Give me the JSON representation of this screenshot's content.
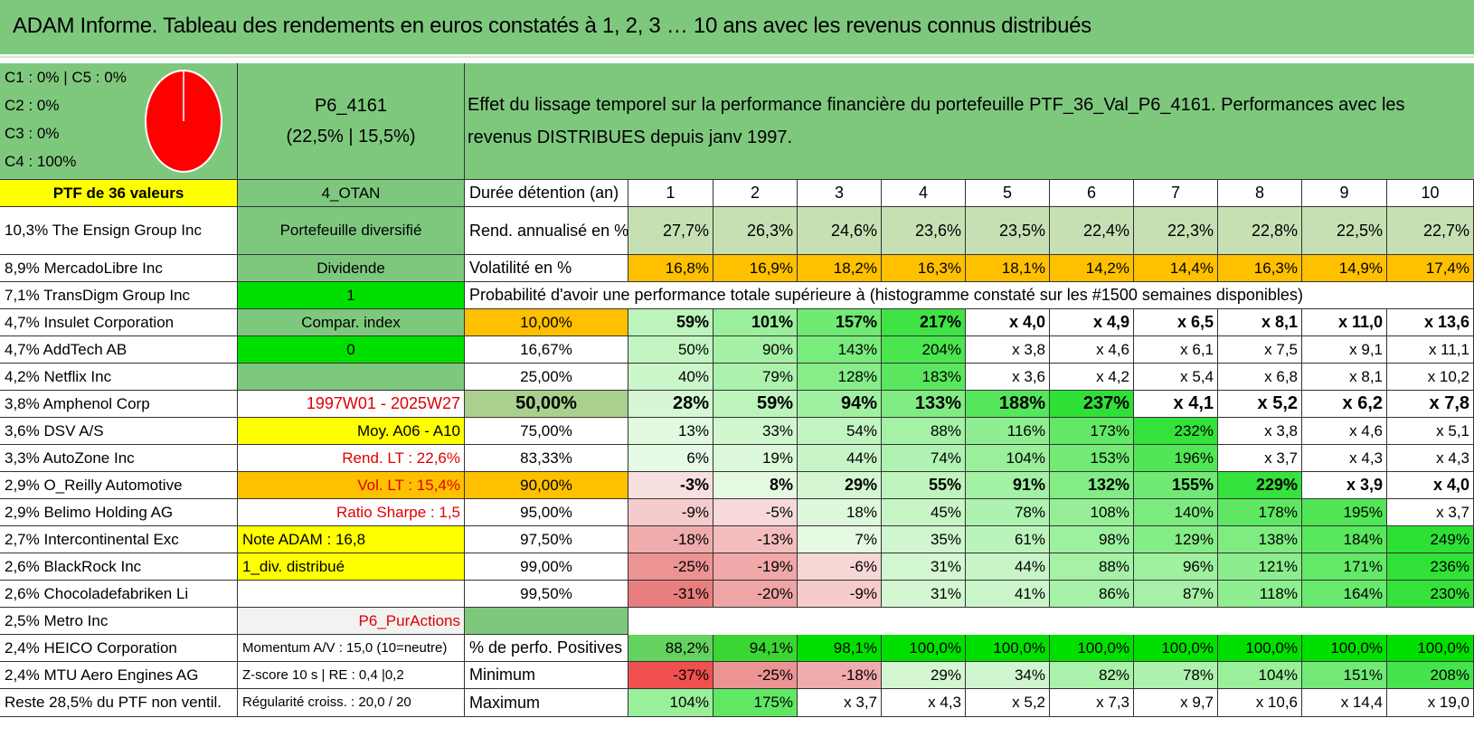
{
  "title": "ADAM Informe. Tableau des rendements en euros constatés à 1, 2, 3 … 10 ans avec les revenus connus distribués",
  "legend": {
    "lines": [
      "C1 : 0% | C5 : 0%",
      "C2 : 0%",
      "C3 : 0%",
      "C4 : 100%"
    ],
    "pie_color": "#ff0000"
  },
  "portfolio": {
    "id": "P6_4161",
    "ratio": "(22,5% | 15,5%)"
  },
  "description": "Effet du lissage temporel sur la performance financière du portefeuille PTF_36_Val_P6_4161. Performances avec les revenus DISTRIBUES depuis janv 1997.",
  "holdings": [
    "PTF de 36 valeurs",
    "10,3% The Ensign Group Inc",
    "8,9% MercadoLibre Inc",
    "7,1% TransDigm Group Inc",
    "4,7% Insulet Corporation",
    "4,7% AddTech AB",
    "4,2% Netflix Inc",
    "3,8% Amphenol Corp",
    "3,6% DSV A/S",
    "3,3% AutoZone Inc",
    "2,9% O_Reilly Automotive",
    "2,9% Belimo Holding AG",
    "2,7% Intercontinental Exc",
    "2,6% BlackRock Inc",
    "2,6% Chocoladefabriken Li",
    "2,5% Metro Inc",
    "2,4% HEICO Corporation",
    "2,4% MTU Aero Engines AG",
    "Reste 28,5% du PTF non ventil."
  ],
  "info": [
    "4_OTAN",
    "Portefeuille diversifié",
    "Dividende",
    "1",
    "Compar. index",
    "0",
    "",
    "1997W01 - 2025W27",
    "Moy. A06 - A10",
    "Rend. LT : 22,6%",
    "Vol. LT : 15,4%",
    "Ratio Sharpe : 1,5",
    "Note ADAM : 16,8",
    "1_div. distribué",
    "",
    "P6_PurActions",
    "Momentum A/V : 15,0 (10=neutre)",
    "Z-score 10 s | RE : 0,4 |0,2",
    "Régularité croiss. : 20,0 / 20"
  ],
  "duration_label": "Durée détention (an)",
  "years": [
    "1",
    "2",
    "3",
    "4",
    "5",
    "6",
    "7",
    "8",
    "9",
    "10"
  ],
  "rend_label": "Rend. annualisé en %",
  "rend": [
    "27,7%",
    "26,3%",
    "24,6%",
    "23,6%",
    "23,5%",
    "22,4%",
    "22,3%",
    "22,8%",
    "22,5%",
    "22,7%"
  ],
  "vol_label": "Volatilité en %",
  "vol": [
    "16,8%",
    "16,9%",
    "18,2%",
    "16,3%",
    "18,1%",
    "14,2%",
    "14,4%",
    "16,3%",
    "14,9%",
    "17,4%"
  ],
  "prob_title": "Probabilité d'avoir une performance totale supérieure à (histogramme constaté sur les #1500 semaines disponibles)",
  "prob_rows": [
    {
      "p": "10,00%",
      "v": [
        "59%",
        "101%",
        "157%",
        "217%",
        "x 4,0",
        "x 4,9",
        "x 6,5",
        "x 8,1",
        "x 11,0",
        "x 13,6"
      ]
    },
    {
      "p": "16,67%",
      "v": [
        "50%",
        "90%",
        "143%",
        "204%",
        "x 3,8",
        "x 4,6",
        "x 6,1",
        "x 7,5",
        "x 9,1",
        "x 11,1"
      ]
    },
    {
      "p": "25,00%",
      "v": [
        "40%",
        "79%",
        "128%",
        "183%",
        "x 3,6",
        "x 4,2",
        "x 5,4",
        "x 6,8",
        "x 8,1",
        "x 10,2"
      ]
    },
    {
      "p": "50,00%",
      "v": [
        "28%",
        "59%",
        "94%",
        "133%",
        "188%",
        "237%",
        "x 4,1",
        "x 5,2",
        "x 6,2",
        "x 7,8"
      ]
    },
    {
      "p": "75,00%",
      "v": [
        "13%",
        "33%",
        "54%",
        "88%",
        "116%",
        "173%",
        "232%",
        "x 3,8",
        "x 4,6",
        "x 5,1"
      ]
    },
    {
      "p": "83,33%",
      "v": [
        "6%",
        "19%",
        "44%",
        "74%",
        "104%",
        "153%",
        "196%",
        "x 3,7",
        "x 4,3",
        "x 4,3"
      ]
    },
    {
      "p": "90,00%",
      "v": [
        "-3%",
        "8%",
        "29%",
        "55%",
        "91%",
        "132%",
        "155%",
        "229%",
        "x 3,9",
        "x 4,0"
      ]
    },
    {
      "p": "95,00%",
      "v": [
        "-9%",
        "-5%",
        "18%",
        "45%",
        "78%",
        "108%",
        "140%",
        "178%",
        "195%",
        "x 3,7"
      ]
    },
    {
      "p": "97,50%",
      "v": [
        "-18%",
        "-13%",
        "7%",
        "35%",
        "61%",
        "98%",
        "129%",
        "138%",
        "184%",
        "249%"
      ]
    },
    {
      "p": "99,00%",
      "v": [
        "-25%",
        "-19%",
        "-6%",
        "31%",
        "44%",
        "88%",
        "96%",
        "121%",
        "171%",
        "236%"
      ]
    },
    {
      "p": "99,50%",
      "v": [
        "-31%",
        "-20%",
        "-9%",
        "31%",
        "41%",
        "86%",
        "87%",
        "118%",
        "164%",
        "230%"
      ]
    }
  ],
  "pos_label": "% de perfo. Positives",
  "pos": [
    "88,2%",
    "94,1%",
    "98,1%",
    "100,0%",
    "100,0%",
    "100,0%",
    "100,0%",
    "100,0%",
    "100,0%",
    "100,0%"
  ],
  "min_label": "Minimum",
  "min": [
    "-37%",
    "-25%",
    "-18%",
    "29%",
    "34%",
    "82%",
    "78%",
    "104%",
    "151%",
    "208%"
  ],
  "max_label": "Maximum",
  "max": [
    "104%",
    "175%",
    "x 3,7",
    "x 4,3",
    "x 5,2",
    "x 7,3",
    "x 9,7",
    "x 10,6",
    "x 14,4",
    "x 19,0"
  ],
  "colors": {
    "title_green": "#7ec87e",
    "yellow": "#ffff00",
    "orange": "#ffc000",
    "bright_green": "#00e000",
    "light_gray": "#f2f2f2",
    "red_text": "#e00000"
  }
}
